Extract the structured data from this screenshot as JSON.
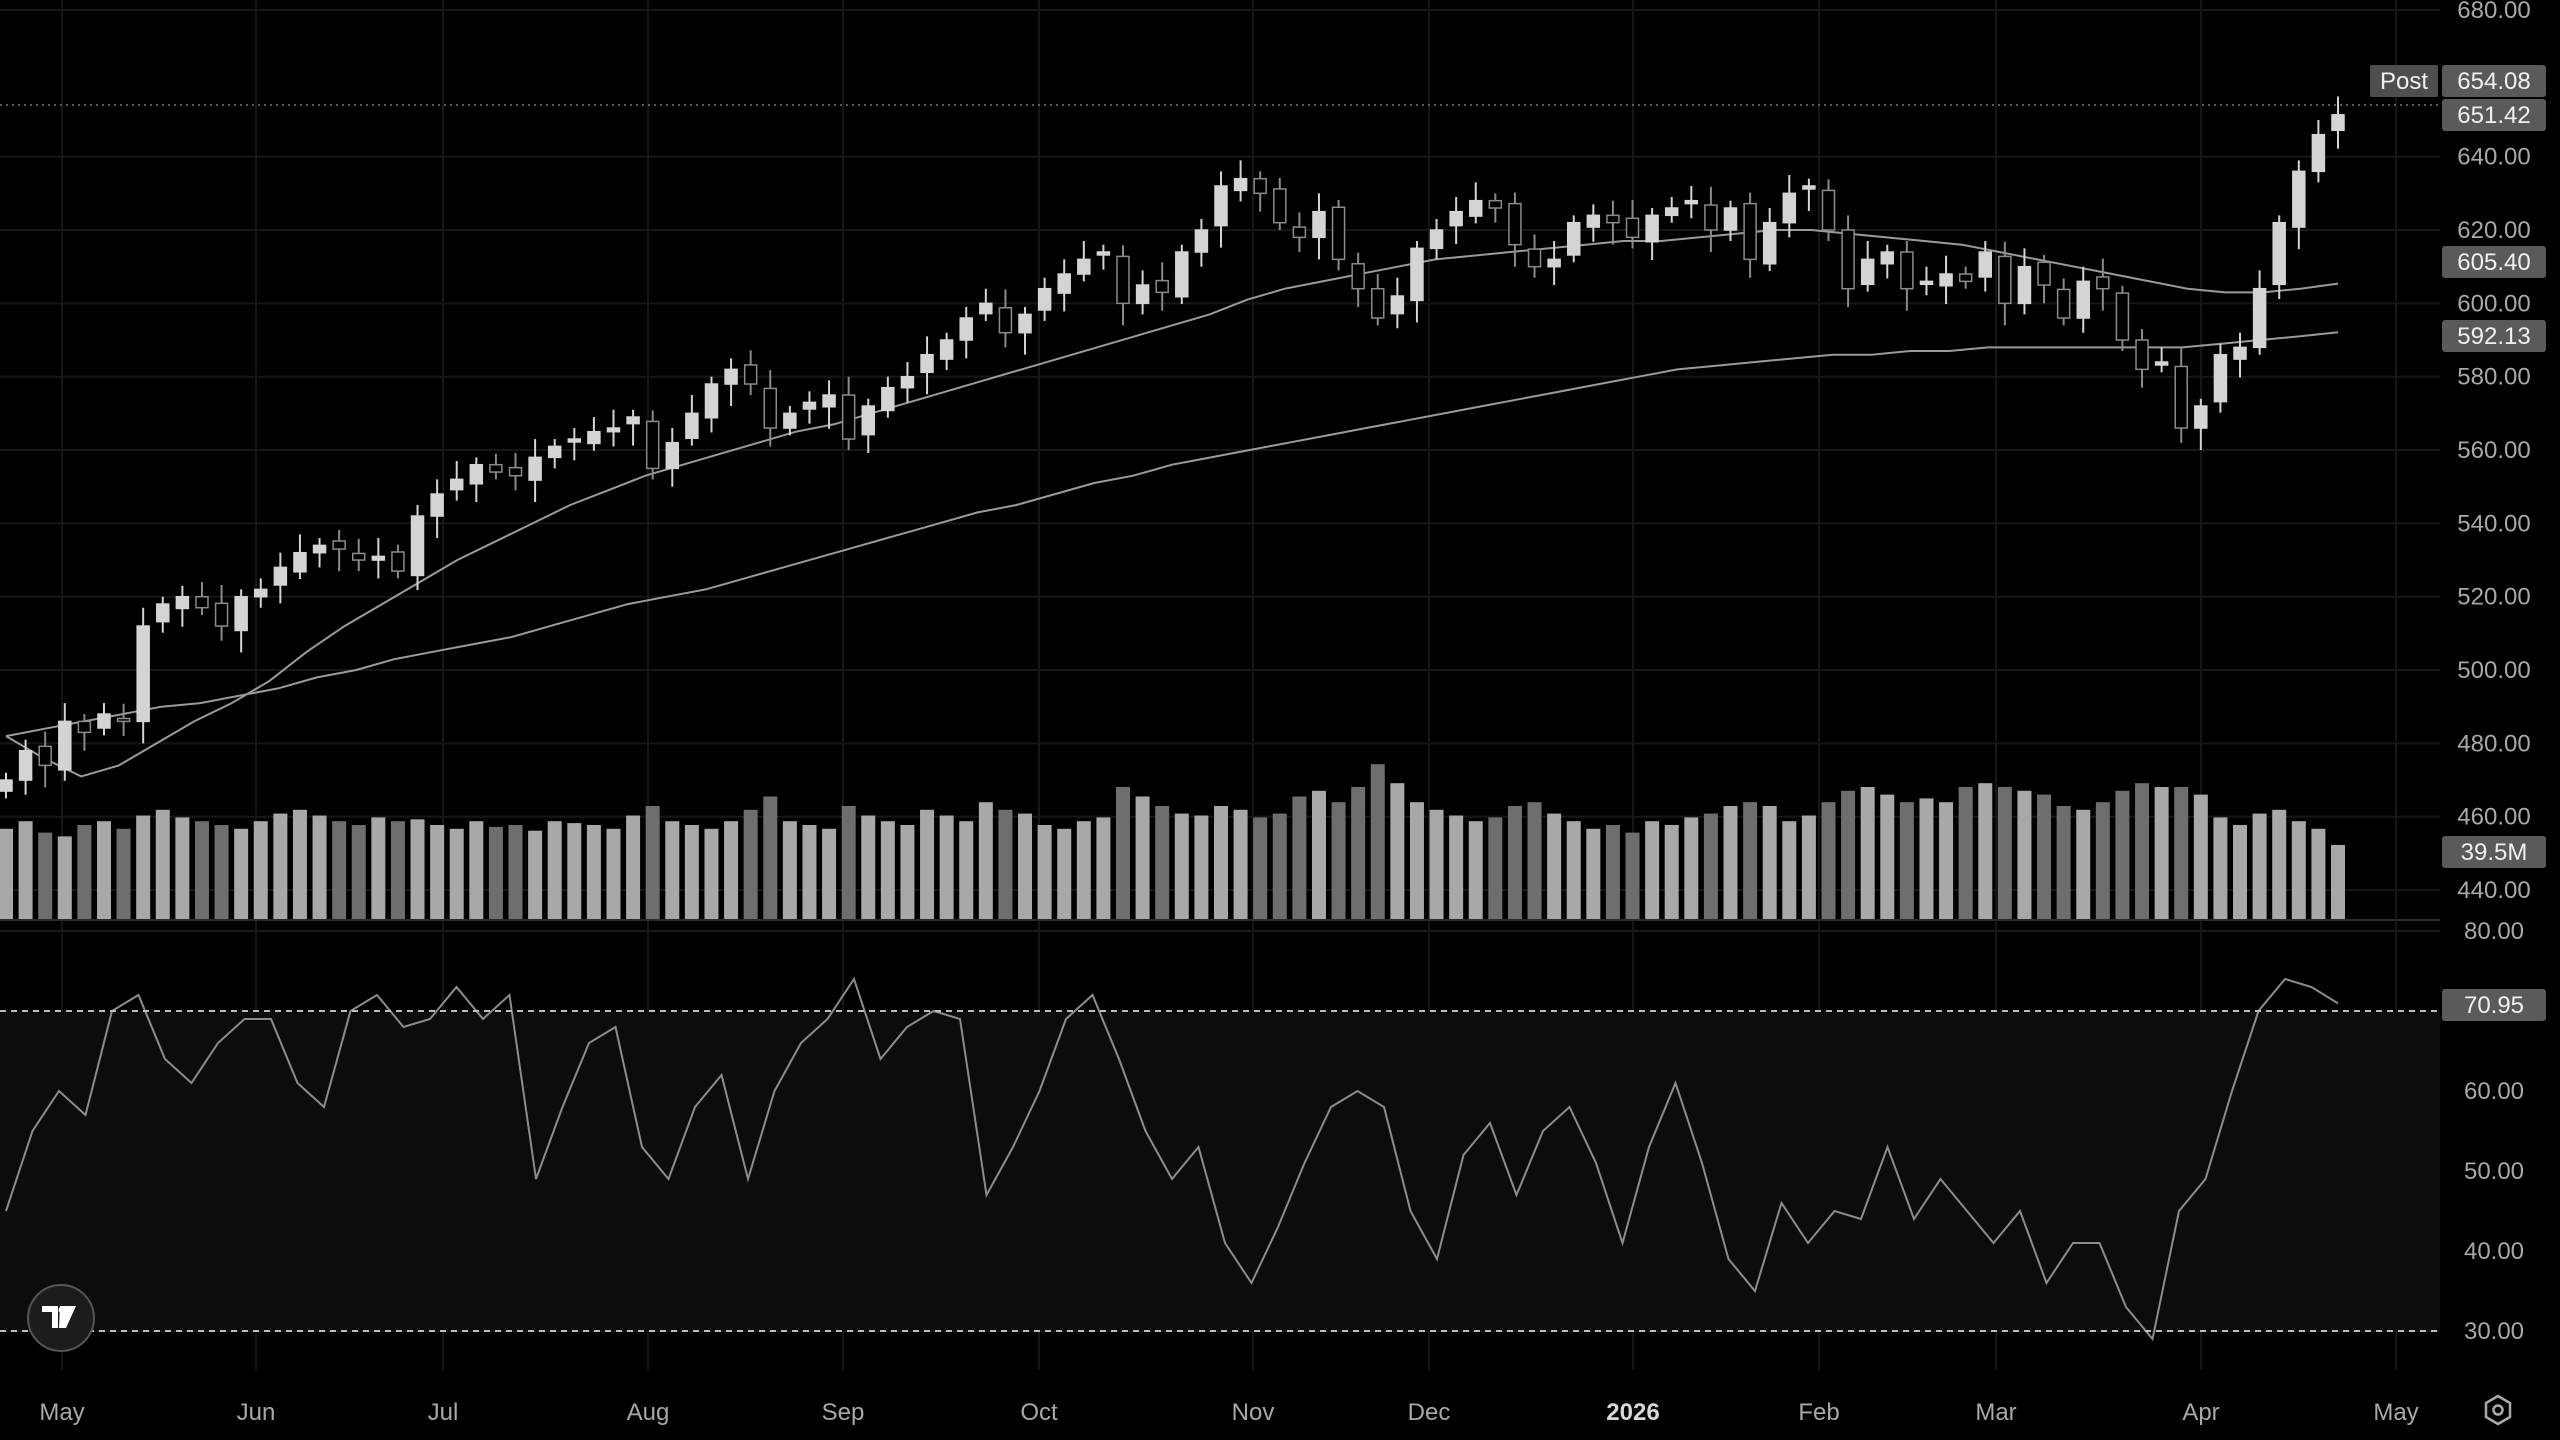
{
  "chart_data": [
    {
      "type": "candlestick",
      "price_axis": {
        "ylim": [
          440,
          680
        ],
        "ticks": [
          "680.00",
          "640.00",
          "620.00",
          "600.00",
          "580.00",
          "560.00",
          "540.00",
          "520.00",
          "500.00",
          "480.00",
          "460.00",
          "440.00"
        ]
      },
      "x_ticks": [
        "May",
        "Jun",
        "Jul",
        "Aug",
        "Sep",
        "Oct",
        "Nov",
        "Dec",
        "2026",
        "Feb",
        "Mar",
        "Apr",
        "May"
      ],
      "close": [
        470,
        478,
        474,
        486,
        483,
        488,
        486,
        512,
        518,
        520,
        517,
        512,
        520,
        522,
        528,
        532,
        534,
        533,
        530,
        531,
        527,
        542,
        548,
        552,
        556,
        554,
        553,
        558,
        561,
        563,
        565,
        566,
        569,
        555,
        562,
        570,
        578,
        582,
        578,
        566,
        570,
        573,
        575,
        563,
        572,
        577,
        580,
        586,
        590,
        596,
        600,
        592,
        597,
        604,
        608,
        612,
        614,
        600,
        605,
        603,
        614,
        620,
        632,
        634,
        630,
        622,
        618,
        625,
        612,
        604,
        596,
        602,
        615,
        620,
        625,
        628,
        626,
        616,
        610,
        612,
        622,
        624,
        622,
        618,
        624,
        626,
        628,
        620,
        626,
        612,
        622,
        630,
        632,
        620,
        604,
        612,
        614,
        604,
        606,
        608,
        606,
        614,
        600,
        610,
        605,
        596,
        606,
        604,
        590,
        582,
        584,
        566,
        572,
        586,
        588,
        604,
        622,
        636,
        646,
        651.42
      ],
      "moving_average_fast": [
        482,
        476,
        471,
        474,
        480,
        486,
        491,
        497,
        505,
        512,
        518,
        524,
        530,
        535,
        540,
        545,
        549,
        553,
        556,
        559,
        562,
        565,
        567,
        570,
        573,
        576,
        579,
        582,
        585,
        588,
        591,
        594,
        597,
        601,
        604,
        606,
        608,
        610,
        612,
        613,
        614,
        615,
        616,
        617,
        617,
        618,
        619,
        620,
        620,
        619,
        618,
        617,
        616,
        614,
        612,
        610,
        608,
        606,
        604,
        603,
        603,
        604,
        605.4
      ],
      "moving_average_slow": [
        482,
        484,
        486,
        488,
        490,
        491,
        493,
        495,
        498,
        500,
        503,
        505,
        507,
        509,
        512,
        515,
        518,
        520,
        522,
        525,
        528,
        531,
        534,
        537,
        540,
        543,
        545,
        548,
        551,
        553,
        556,
        558,
        560,
        562,
        564,
        566,
        568,
        570,
        572,
        574,
        576,
        578,
        580,
        582,
        583,
        584,
        585,
        586,
        586,
        587,
        587,
        588,
        588,
        588,
        588,
        588,
        588,
        589,
        590,
        591,
        592.13
      ],
      "volume_millions": [
        48,
        52,
        46,
        44,
        50,
        52,
        48,
        55,
        58,
        54,
        52,
        50,
        48,
        52,
        56,
        58,
        55,
        52,
        50,
        54,
        52,
        53,
        50,
        48,
        52,
        49,
        50,
        47,
        52,
        51,
        50,
        48,
        55,
        60,
        52,
        50,
        48,
        52,
        58,
        65,
        52,
        50,
        48,
        60,
        55,
        52,
        50,
        58,
        55,
        52,
        62,
        58,
        56,
        50,
        48,
        52,
        54,
        70,
        65,
        60,
        56,
        55,
        60,
        58,
        54,
        56,
        65,
        68,
        62,
        70,
        82,
        72,
        62,
        58,
        55,
        52,
        54,
        60,
        62,
        56,
        52,
        48,
        50,
        46,
        52,
        50,
        54,
        56,
        60,
        62,
        60,
        52,
        55,
        62,
        68,
        70,
        66,
        62,
        64,
        62,
        70,
        72,
        70,
        68,
        66,
        60,
        58,
        62,
        68,
        72,
        70,
        70,
        66,
        54,
        50,
        56,
        58,
        52,
        48,
        39.5
      ],
      "volume_axis_label": "39.5M",
      "rsi": {
        "ylim": [
          25,
          82
        ],
        "ticks": [
          "80.00",
          "60.00",
          "50.00",
          "40.00",
          "30.00"
        ],
        "overbought": 70,
        "oversold": 30,
        "values": [
          45,
          55,
          60,
          57,
          70,
          72,
          64,
          61,
          66,
          69,
          69,
          61,
          58,
          70,
          72,
          68,
          69,
          73,
          69,
          72,
          49,
          58,
          66,
          68,
          53,
          49,
          58,
          62,
          49,
          60,
          66,
          69,
          74,
          64,
          68,
          70,
          69,
          47,
          53,
          60,
          69,
          72,
          64,
          55,
          49,
          53,
          41,
          36,
          43,
          51,
          58,
          60,
          58,
          45,
          39,
          52,
          56,
          47,
          55,
          58,
          51,
          41,
          53,
          61,
          51,
          39,
          35,
          46,
          41,
          45,
          44,
          53,
          44,
          49,
          45,
          41,
          45,
          36,
          41,
          41,
          33,
          29,
          45,
          49,
          60,
          70,
          74,
          73,
          70.95
        ]
      }
    }
  ],
  "tags": {
    "post_label": "Post",
    "post_price": "654.08",
    "last_price": "651.42",
    "ma_fast": "605.40",
    "ma_slow": "592.13",
    "volume": "39.5M",
    "rsi": "70.95"
  },
  "colors": {
    "background": "#000000",
    "candle_up": "#d4d4d4",
    "candle_down": "#8a8a8a",
    "ma": "#9a9a9a",
    "tag_bg": "#5a5a5a"
  },
  "icons": {
    "logo": "tradingview-logo-icon",
    "settings": "settings-icon"
  }
}
